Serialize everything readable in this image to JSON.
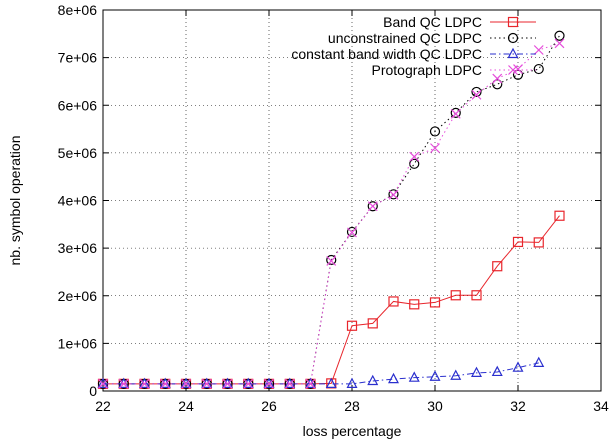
{
  "chart_data": {
    "type": "line",
    "xlabel": "loss percentage",
    "ylabel": "nb. symbol operation",
    "xlim": [
      22,
      34
    ],
    "ylim": [
      0,
      8000000
    ],
    "xticks": [
      22,
      24,
      26,
      28,
      30,
      32,
      34
    ],
    "xtick_labels": [
      "22",
      "24",
      "26",
      "28",
      "30",
      "32",
      "34"
    ],
    "yticks": [
      0,
      1000000,
      2000000,
      3000000,
      4000000,
      5000000,
      6000000,
      7000000,
      8000000
    ],
    "ytick_labels": [
      "0",
      "1e+06",
      "2e+06",
      "3e+06",
      "4e+06",
      "5e+06",
      "6e+06",
      "7e+06",
      "8e+06"
    ],
    "grid": true,
    "legend_position": "top-right",
    "series": [
      {
        "name": "Band QC LDPC",
        "color": "#e8262c",
        "marker": "square",
        "dash": "solid",
        "x": [
          22,
          22.5,
          23,
          23.5,
          24,
          24.5,
          25,
          25.5,
          26,
          26.5,
          27,
          27.5,
          28,
          28.5,
          29,
          29.5,
          30,
          30.5,
          31,
          31.5,
          32,
          32.5,
          33
        ],
        "y": [
          150000,
          150000,
          150000,
          150000,
          150000,
          150000,
          150000,
          150000,
          150000,
          150000,
          150000,
          160000,
          1370000,
          1420000,
          1880000,
          1820000,
          1860000,
          2010000,
          2010000,
          2620000,
          3130000,
          3120000,
          3680000
        ]
      },
      {
        "name": "unconstrained QC LDPC",
        "color": "#000000",
        "marker": "circle",
        "dash": "dotted",
        "x": [
          22,
          22.5,
          23,
          23.5,
          24,
          24.5,
          25,
          25.5,
          26,
          26.5,
          27,
          27.5,
          28,
          28.5,
          29,
          29.5,
          30,
          30.5,
          31,
          31.5,
          32,
          32.5,
          33
        ],
        "y": [
          150000,
          150000,
          150000,
          150000,
          150000,
          150000,
          150000,
          150000,
          150000,
          150000,
          150000,
          2750000,
          3340000,
          3880000,
          4130000,
          4770000,
          5450000,
          5840000,
          6280000,
          6440000,
          6640000,
          6760000,
          7460000
        ]
      },
      {
        "name": "constant band width QC LDPC",
        "color": "#2a2fce",
        "marker": "triangle",
        "dash": "dashdot",
        "x": [
          22,
          22.5,
          23,
          23.5,
          24,
          24.5,
          25,
          25.5,
          26,
          26.5,
          27,
          27.5,
          28,
          28.5,
          29,
          29.5,
          30,
          30.5,
          31,
          31.5,
          32,
          32.5
        ],
        "y": [
          150000,
          150000,
          150000,
          150000,
          150000,
          150000,
          150000,
          150000,
          150000,
          150000,
          150000,
          150000,
          150000,
          210000,
          250000,
          280000,
          300000,
          320000,
          380000,
          400000,
          490000,
          590000
        ]
      },
      {
        "name": "Protograph LDPC",
        "color": "#e64ddb",
        "marker": "x",
        "dash": "dotted",
        "x": [
          22,
          22.5,
          23,
          23.5,
          24,
          24.5,
          25,
          25.5,
          26,
          26.5,
          27,
          27.5,
          28,
          28.5,
          29,
          29.5,
          30,
          30.5,
          31,
          31.5,
          32,
          32.5,
          33
        ],
        "y": [
          150000,
          150000,
          150000,
          150000,
          150000,
          150000,
          150000,
          150000,
          150000,
          150000,
          150000,
          2730000,
          3330000,
          3880000,
          4120000,
          4920000,
          5100000,
          5820000,
          6220000,
          6560000,
          6760000,
          7160000,
          7300000
        ]
      }
    ]
  }
}
